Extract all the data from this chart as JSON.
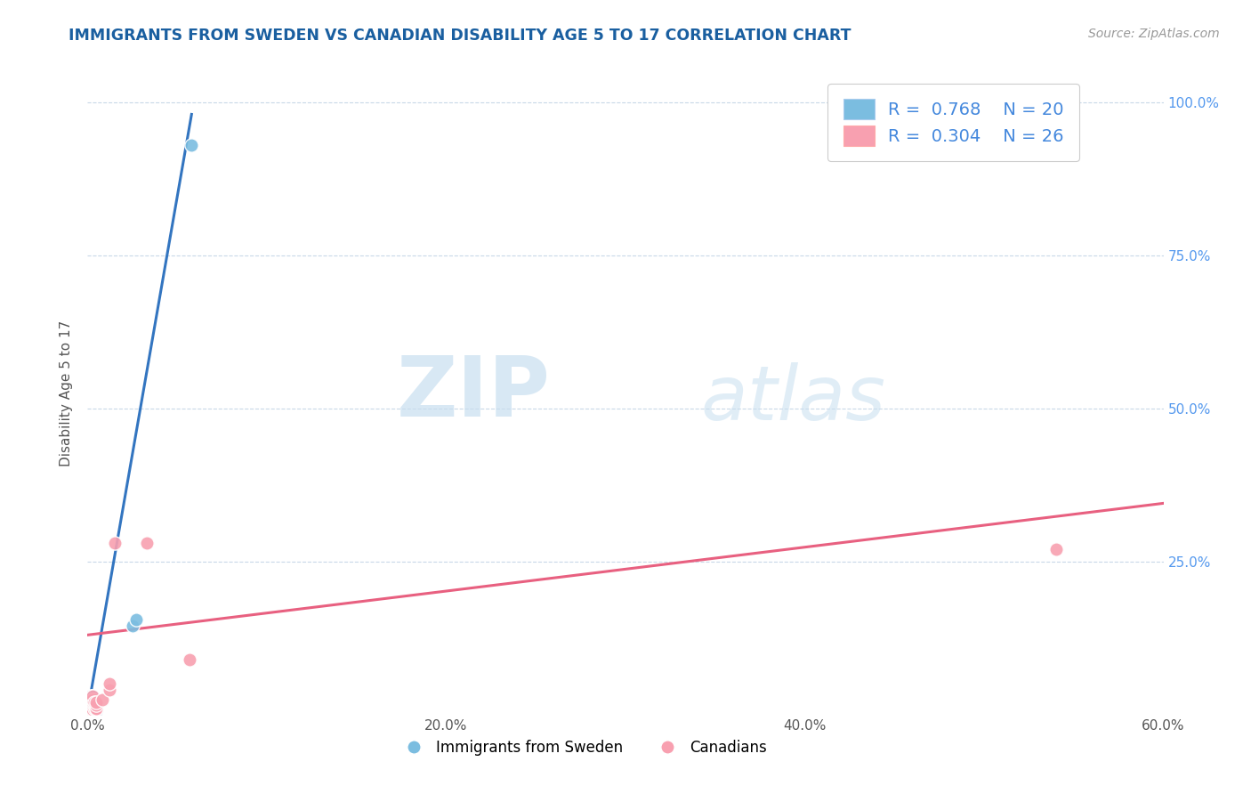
{
  "title": "IMMIGRANTS FROM SWEDEN VS CANADIAN DISABILITY AGE 5 TO 17 CORRELATION CHART",
  "source_text": "Source: ZipAtlas.com",
  "ylabel": "Disability Age 5 to 17",
  "xlim": [
    0.0,
    0.6
  ],
  "ylim": [
    0.0,
    1.05
  ],
  "xtick_labels": [
    "0.0%",
    "20.0%",
    "40.0%",
    "60.0%"
  ],
  "xtick_values": [
    0.0,
    0.2,
    0.4,
    0.6
  ],
  "ytick_labels": [
    "25.0%",
    "50.0%",
    "75.0%",
    "100.0%"
  ],
  "ytick_values": [
    0.25,
    0.5,
    0.75,
    1.0
  ],
  "sweden_color": "#7bbde0",
  "canada_color": "#f8a0b0",
  "sweden_line_color": "#3375c0",
  "canada_line_color": "#e86080",
  "title_color": "#1a5fa0",
  "source_color": "#999999",
  "legend_sweden_R": "0.768",
  "legend_sweden_N": "20",
  "legend_canada_R": "0.304",
  "legend_canada_N": "26",
  "watermark_zip": "ZIP",
  "watermark_atlas": "atlas",
  "sweden_points_x": [
    0.001,
    0.001,
    0.001,
    0.002,
    0.002,
    0.002,
    0.002,
    0.002,
    0.003,
    0.003,
    0.003,
    0.003,
    0.003,
    0.003,
    0.004,
    0.005,
    0.005,
    0.025,
    0.027,
    0.058
  ],
  "sweden_points_y": [
    0.025,
    0.02,
    0.015,
    0.03,
    0.025,
    0.02,
    0.015,
    0.01,
    0.03,
    0.025,
    0.02,
    0.015,
    0.01,
    0.005,
    0.005,
    0.005,
    0.005,
    0.145,
    0.155,
    0.93
  ],
  "canada_points_x": [
    0.001,
    0.001,
    0.001,
    0.002,
    0.002,
    0.002,
    0.003,
    0.003,
    0.003,
    0.003,
    0.003,
    0.003,
    0.004,
    0.004,
    0.004,
    0.005,
    0.005,
    0.005,
    0.005,
    0.008,
    0.012,
    0.012,
    0.015,
    0.033,
    0.057,
    0.54
  ],
  "canada_points_y": [
    0.01,
    0.005,
    0.015,
    0.008,
    0.01,
    0.015,
    0.01,
    0.008,
    0.015,
    0.02,
    0.025,
    0.03,
    0.01,
    0.015,
    0.02,
    0.008,
    0.01,
    0.015,
    0.02,
    0.025,
    0.04,
    0.05,
    0.28,
    0.28,
    0.09,
    0.27
  ],
  "sweden_trendline_x": [
    0.0,
    0.058
  ],
  "sweden_trendline_y": [
    0.005,
    0.98
  ],
  "canada_trendline_x": [
    0.0,
    0.6
  ],
  "canada_trendline_y": [
    0.13,
    0.345
  ]
}
